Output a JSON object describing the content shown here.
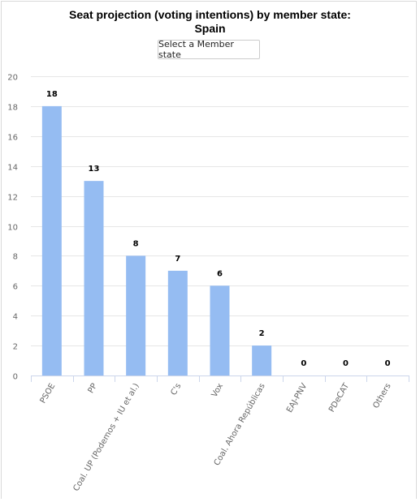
{
  "title_line1": "Seat projection (voting intentions) by member state:",
  "title_line2": "Spain",
  "select_label": "Select a Member state",
  "colors": {
    "bar": "#95bcf2",
    "grid": "#e6e6e6",
    "axis": "#ccd6eb"
  },
  "chart_data": {
    "type": "bar",
    "categories": [
      "PSOE",
      "PP",
      "Coal. UP (Podemos + IU et al.)",
      "C's",
      "Vox",
      "Coal. Ahora Repúblicas",
      "EAJ-PNV",
      "PDeCAT",
      "Others"
    ],
    "values": [
      18,
      13,
      8,
      7,
      6,
      2,
      0,
      0,
      0
    ],
    "ylim": [
      0,
      20
    ],
    "yticks": [
      0,
      2,
      4,
      6,
      8,
      10,
      12,
      14,
      16,
      18,
      20
    ],
    "grid": true,
    "data_labels": true
  }
}
